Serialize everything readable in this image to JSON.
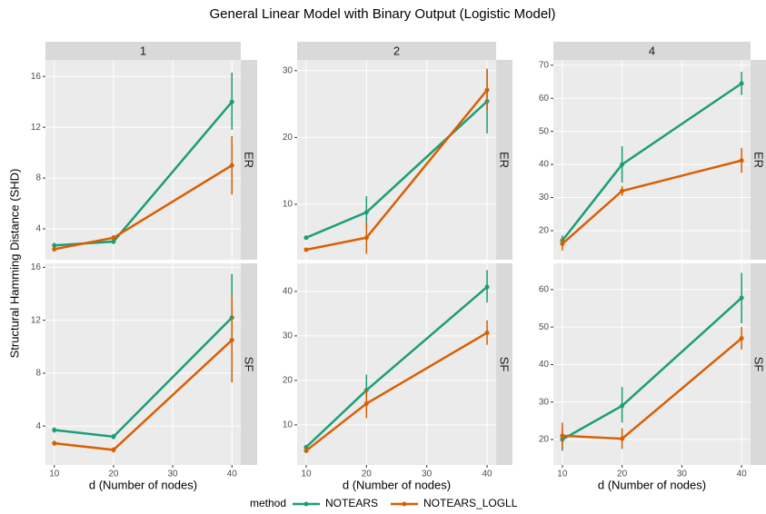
{
  "chart_data": {
    "type": "line",
    "title": "General Linear Model with Binary Output (Logistic Model)",
    "x_label": "d (Number of nodes)",
    "y_label": "Structural Hamming Distance (SHD)",
    "legend_title": "method",
    "legend": [
      {
        "name": "NOTEARS",
        "color": "#1b9e77"
      },
      {
        "name": "NOTEARS_LOGLL",
        "color": "#d95f02"
      }
    ],
    "col_labels": [
      "1",
      "2",
      "4"
    ],
    "row_labels": [
      "ER",
      "SF"
    ],
    "x": [
      10,
      20,
      40
    ],
    "xlim": [
      8.5,
      41.5
    ],
    "xticks": [
      10,
      20,
      30,
      40
    ],
    "grid": true,
    "panels": [
      {
        "ylim": [
          1.57,
          17.3
        ],
        "yticks": [
          4,
          8,
          12,
          16
        ],
        "series": [
          {
            "values": [
              2.7,
              3.0,
              14.0
            ],
            "lower": [
              2.5,
              2.8,
              11.8
            ],
            "upper": [
              2.9,
              3.2,
              16.3
            ]
          },
          {
            "values": [
              2.4,
              3.3,
              9.0
            ],
            "lower": [
              2.2,
              3.1,
              6.7
            ],
            "upper": [
              2.6,
              3.5,
              11.3
            ]
          }
        ]
      },
      {
        "ylim": [
          1.7,
          31.6
        ],
        "yticks": [
          10,
          20,
          30
        ],
        "series": [
          {
            "values": [
              5.0,
              8.8,
              25.4
            ],
            "lower": [
              4.7,
              6.5,
              20.6
            ],
            "upper": [
              5.3,
              11.2,
              30.2
            ]
          },
          {
            "values": [
              3.2,
              5.0,
              27.1
            ],
            "lower": [
              2.9,
              2.6,
              24.0
            ],
            "upper": [
              3.5,
              7.3,
              30.3
            ]
          }
        ]
      },
      {
        "ylim": [
          11.2,
          71.6
        ],
        "yticks": [
          20,
          30,
          40,
          50,
          60,
          70
        ],
        "series": [
          {
            "values": [
              17,
              40,
              64.5
            ],
            "lower": [
              15.5,
              34.5,
              61
            ],
            "upper": [
              18.5,
              45.5,
              68
            ]
          },
          {
            "values": [
              16,
              32,
              41.2
            ],
            "lower": [
              14,
              30.5,
              37.5
            ],
            "upper": [
              18,
              33.5,
              45
            ]
          }
        ]
      },
      {
        "ylim": [
          1.06,
          16.3
        ],
        "yticks": [
          4,
          8,
          12,
          16
        ],
        "series": [
          {
            "values": [
              3.7,
              3.2,
              12.2
            ],
            "lower": [
              3.5,
              3.0,
              9.0
            ],
            "upper": [
              3.9,
              3.4,
              15.5
            ]
          },
          {
            "values": [
              2.7,
              2.2,
              10.5
            ],
            "lower": [
              2.5,
              2.0,
              7.3
            ],
            "upper": [
              2.9,
              2.4,
              13.8
            ]
          }
        ]
      },
      {
        "ylim": [
          1.0,
          46.3
        ],
        "yticks": [
          10,
          20,
          30,
          40
        ],
        "series": [
          {
            "values": [
              5.0,
              17.8,
              41
            ],
            "lower": [
              4.5,
              14.5,
              37.5
            ],
            "upper": [
              5.5,
              21.3,
              44.8
            ]
          },
          {
            "values": [
              4.2,
              14.8,
              30.7
            ],
            "lower": [
              3.7,
              11.5,
              28
            ],
            "upper": [
              4.7,
              18,
              33.5
            ]
          }
        ]
      },
      {
        "ylim": [
          13.2,
          67
        ],
        "yticks": [
          20,
          30,
          40,
          50,
          60
        ],
        "series": [
          {
            "values": [
              20,
              29,
              57.8
            ],
            "lower": [
              17,
              24.5,
              51
            ],
            "upper": [
              23,
              34,
              64.5
            ]
          },
          {
            "values": [
              21,
              20.2,
              47
            ],
            "lower": [
              17.5,
              17.5,
              44
            ],
            "upper": [
              24.5,
              23,
              50
            ]
          }
        ]
      }
    ]
  }
}
